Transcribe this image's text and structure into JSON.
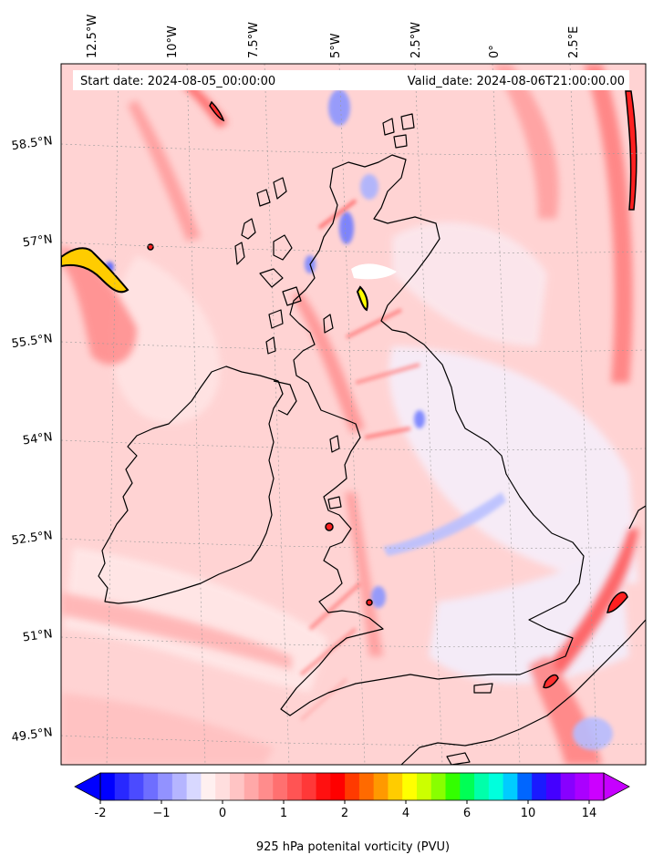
{
  "header": {
    "start_date": "Start date: 2024-08-05_00:00:00",
    "valid_date": "Valid_date: 2024-08-06T21:00:00.00"
  },
  "lon_labels": [
    "12.5°W",
    "10°W",
    "7.5°W",
    "5°W",
    "2.5°W",
    "0°",
    "2.5°E"
  ],
  "lat_labels": [
    "58.5°N",
    "57°N",
    "55.5°N",
    "54°N",
    "52.5°N",
    "51°N",
    "49.5°N"
  ],
  "colorbar": {
    "title": "925 hPa potenital vorticity (PVU)",
    "ticks": [
      "-2",
      "−1",
      "0",
      "1",
      "2",
      "4",
      "6",
      "10",
      "14"
    ],
    "tick_values": [
      -2,
      -1,
      0,
      1,
      2,
      4,
      6,
      10,
      14
    ],
    "colors": [
      "#0000ff",
      "#2828ff",
      "#4b4bff",
      "#6e6eff",
      "#9292ff",
      "#b5b5ff",
      "#d8d8ff",
      "#fff0f0",
      "#ffdede",
      "#ffc4c4",
      "#ffa8a8",
      "#ff8c8c",
      "#ff7070",
      "#ff5454",
      "#ff3838",
      "#ff1010",
      "#ff0000",
      "#ff3a00",
      "#ff6a00",
      "#ff9900",
      "#ffcc00",
      "#ffff00",
      "#ccff00",
      "#88ff00",
      "#33ff00",
      "#00ff55",
      "#00ffaa",
      "#00ffdd",
      "#00ccff",
      "#0066ff",
      "#1a1aff",
      "#4400ff",
      "#8800ff",
      "#aa00ff",
      "#cc00ff"
    ],
    "under_color": "#0000ff",
    "over_color": "#c600ff"
  },
  "colors": {
    "background_field": "#ffd0d0",
    "coast": "#000000",
    "strong_pv": "#ff2a2a",
    "negative_pv": "#5a6bff"
  }
}
